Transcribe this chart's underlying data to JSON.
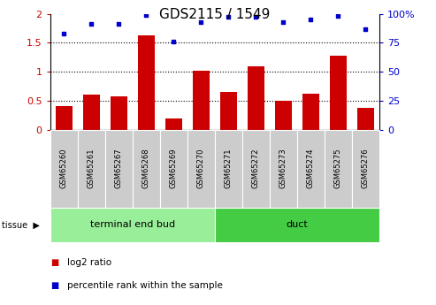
{
  "title": "GDS2115 / 1549",
  "samples": [
    "GSM65260",
    "GSM65261",
    "GSM65267",
    "GSM65268",
    "GSM65269",
    "GSM65270",
    "GSM65271",
    "GSM65272",
    "GSM65273",
    "GSM65274",
    "GSM65275",
    "GSM65276"
  ],
  "log2_ratio": [
    0.4,
    0.6,
    0.58,
    1.62,
    0.2,
    1.02,
    0.65,
    1.1,
    0.5,
    0.62,
    1.27,
    0.37
  ],
  "percentile_rank": [
    83,
    91,
    91,
    99,
    76,
    93,
    97,
    97,
    93,
    95,
    98,
    87
  ],
  "groups": [
    {
      "label": "terminal end bud",
      "start": 0,
      "end": 6,
      "color": "#99ee99"
    },
    {
      "label": "duct",
      "start": 6,
      "end": 12,
      "color": "#44cc44"
    }
  ],
  "bar_color": "#cc0000",
  "dot_color": "#0000cc",
  "ylim_left": [
    0,
    2
  ],
  "ylim_right": [
    0,
    100
  ],
  "yticks_left": [
    0,
    0.5,
    1.0,
    1.5,
    2.0
  ],
  "yticks_right": [
    0,
    25,
    50,
    75,
    100
  ],
  "ytick_labels_left": [
    "0",
    "0.5",
    "1",
    "1.5",
    "2"
  ],
  "ytick_labels_right": [
    "0",
    "25",
    "50",
    "75",
    "100%"
  ],
  "hlines": [
    0.5,
    1.0,
    1.5
  ],
  "legend_bar_label": "log2 ratio",
  "legend_dot_label": "percentile rank within the sample",
  "tick_area_color": "#cccccc",
  "title_fontsize": 11,
  "axis_fontsize": 8,
  "sample_fontsize": 6,
  "group_fontsize": 8,
  "legend_fontsize": 7.5
}
